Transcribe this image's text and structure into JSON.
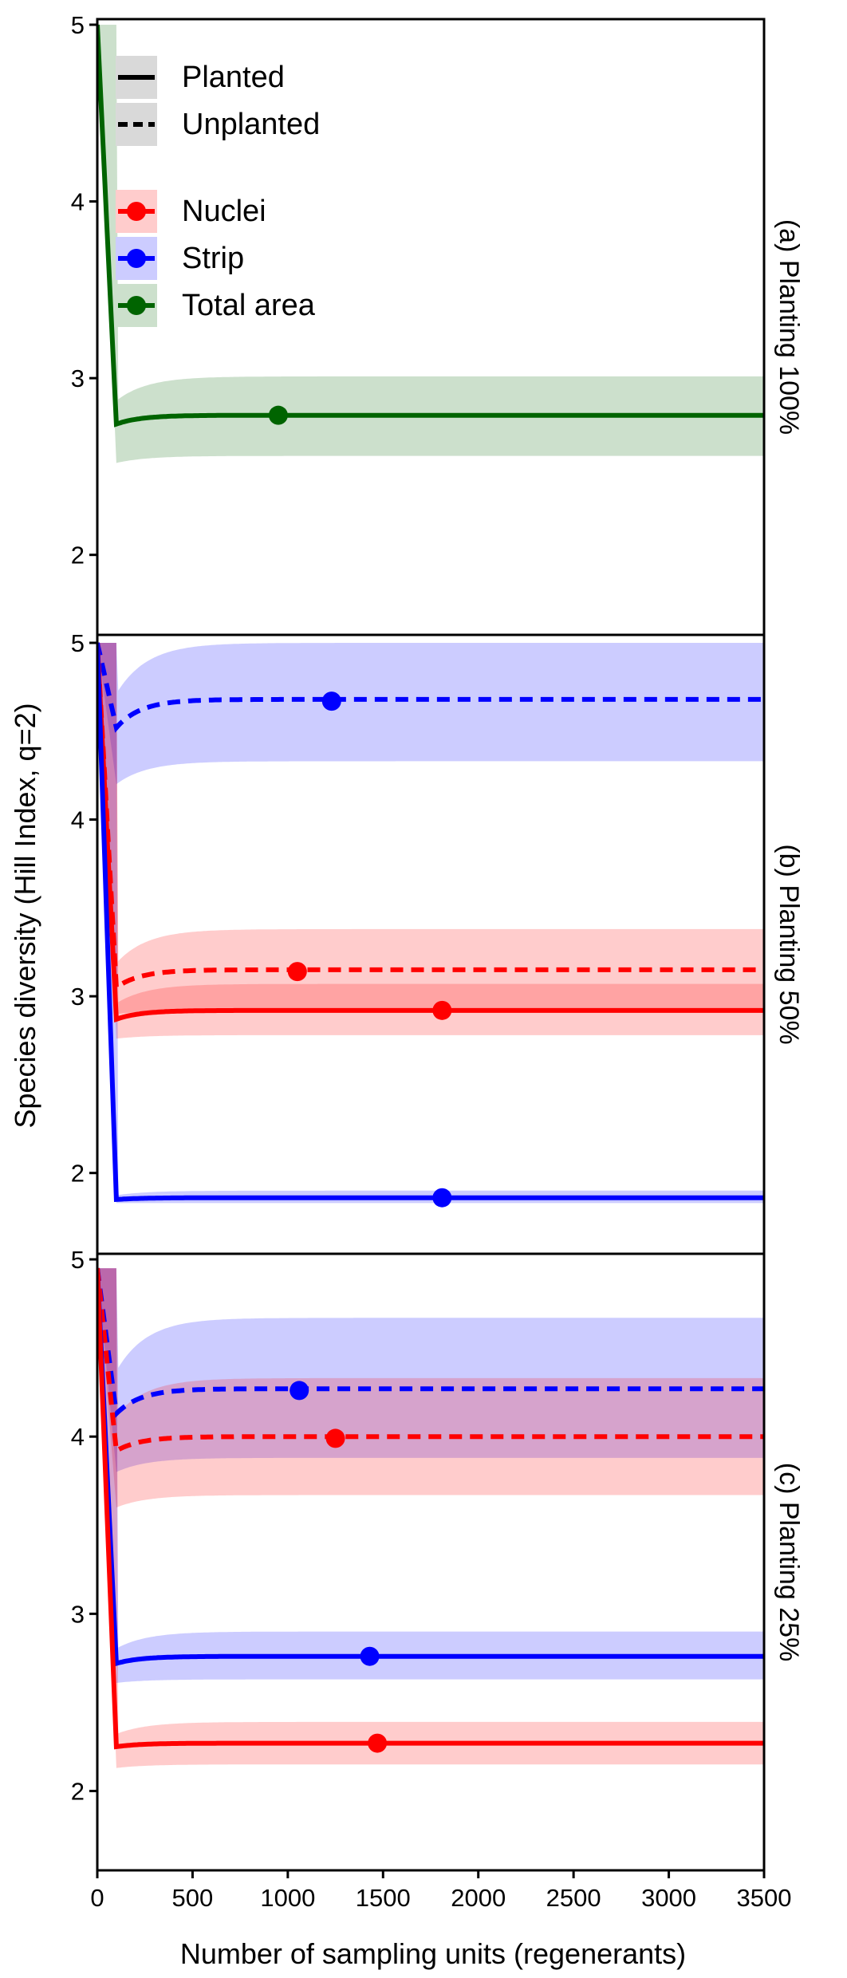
{
  "chart_data": {
    "type": "line",
    "xlabel": "Number of sampling units (regenerants)",
    "ylabel": "Species diversity (Hill Index, q=2)",
    "xlim": [
      0,
      3500
    ],
    "x_ticks": [
      0,
      500,
      1000,
      1500,
      2000,
      2500,
      3000,
      3500
    ],
    "x_tick_labels": [
      "0",
      "500",
      "1000",
      "1500",
      "2000",
      "2500",
      "3000",
      "3500"
    ],
    "ylim": [
      1.8,
      5.0
    ],
    "y_ticks": [
      2,
      3,
      4,
      5
    ],
    "grid": false,
    "legend": {
      "placement": "top-left",
      "line_types": [
        {
          "label": "Planted",
          "dash": "solid"
        },
        {
          "label": "Unplanted",
          "dash": "dashed"
        }
      ],
      "areas": [
        {
          "label": "Nuclei",
          "color": "#ff0000",
          "band_color": "#ffcccc"
        },
        {
          "label": "Strip",
          "color": "#0000ff",
          "band_color": "#ccccff"
        },
        {
          "label": "Total area",
          "color": "#006400",
          "band_color": "#cce0cc"
        }
      ]
    },
    "panels": [
      {
        "label": "(a) Planting 100%",
        "series": [
          {
            "area": "Total area",
            "treatment": "Planted",
            "color": "#006400",
            "band_color": "#cce0cc",
            "start_y": 5.0,
            "min_x": 100,
            "min_y": 2.74,
            "asymptote": 2.79,
            "lower": 2.56,
            "upper": 3.01,
            "band_start": 2.52,
            "observed_x": 950,
            "observed_y": 2.79
          }
        ]
      },
      {
        "label": "(b) Planting 50%",
        "series": [
          {
            "area": "Strip",
            "treatment": "Unplanted",
            "color": "#0000ff",
            "band_color": "#ccccff",
            "start_y": 5.0,
            "min_x": 100,
            "min_y": 4.52,
            "asymptote": 4.68,
            "lower": 4.33,
            "upper": 5.0,
            "band_start": 4.2,
            "observed_x": 1230,
            "observed_y": 4.67
          },
          {
            "area": "Nuclei",
            "treatment": "Unplanted",
            "color": "#ff0000",
            "band_color": "#ffcccc",
            "start_y": 5.0,
            "min_x": 100,
            "min_y": 3.05,
            "asymptote": 3.15,
            "lower": 2.92,
            "upper": 3.38,
            "band_start": 2.9,
            "observed_x": 1050,
            "observed_y": 3.14
          },
          {
            "area": "Nuclei",
            "treatment": "Planted",
            "color": "#ff0000",
            "band_color": "#ffcccc",
            "start_y": 5.0,
            "min_x": 100,
            "min_y": 2.87,
            "asymptote": 2.92,
            "lower": 2.78,
            "upper": 3.07,
            "band_start": 2.76,
            "observed_x": 1810,
            "observed_y": 2.92
          },
          {
            "area": "Strip",
            "treatment": "Planted",
            "color": "#0000ff",
            "band_color": "#ccccff",
            "start_y": 5.0,
            "min_x": 100,
            "min_y": 1.85,
            "asymptote": 1.86,
            "lower": 1.83,
            "upper": 1.9,
            "band_start": 1.83,
            "observed_x": 1810,
            "observed_y": 1.86
          }
        ]
      },
      {
        "label": "(c) Planting 25%",
        "series": [
          {
            "area": "Strip",
            "treatment": "Unplanted",
            "color": "#0000ff",
            "band_color": "#ccccff",
            "start_y": 4.95,
            "min_x": 100,
            "min_y": 4.13,
            "asymptote": 4.27,
            "lower": 3.88,
            "upper": 4.67,
            "band_start": 3.8,
            "observed_x": 1060,
            "observed_y": 4.26
          },
          {
            "area": "Nuclei",
            "treatment": "Unplanted",
            "color": "#ff0000",
            "band_color": "#ffcccc",
            "start_y": 4.95,
            "min_x": 100,
            "min_y": 3.92,
            "asymptote": 4.0,
            "lower": 3.67,
            "upper": 4.33,
            "band_start": 3.6,
            "observed_x": 1250,
            "observed_y": 3.99
          },
          {
            "area": "Strip",
            "treatment": "Planted",
            "color": "#0000ff",
            "band_color": "#ccccff",
            "start_y": 4.95,
            "min_x": 100,
            "min_y": 2.72,
            "asymptote": 2.76,
            "lower": 2.63,
            "upper": 2.9,
            "band_start": 2.61,
            "observed_x": 1430,
            "observed_y": 2.76
          },
          {
            "area": "Nuclei",
            "treatment": "Planted",
            "color": "#ff0000",
            "band_color": "#ffcccc",
            "start_y": 4.95,
            "min_x": 100,
            "min_y": 2.25,
            "asymptote": 2.27,
            "lower": 2.15,
            "upper": 2.39,
            "band_start": 2.13,
            "observed_x": 1470,
            "observed_y": 2.27
          }
        ]
      }
    ]
  }
}
